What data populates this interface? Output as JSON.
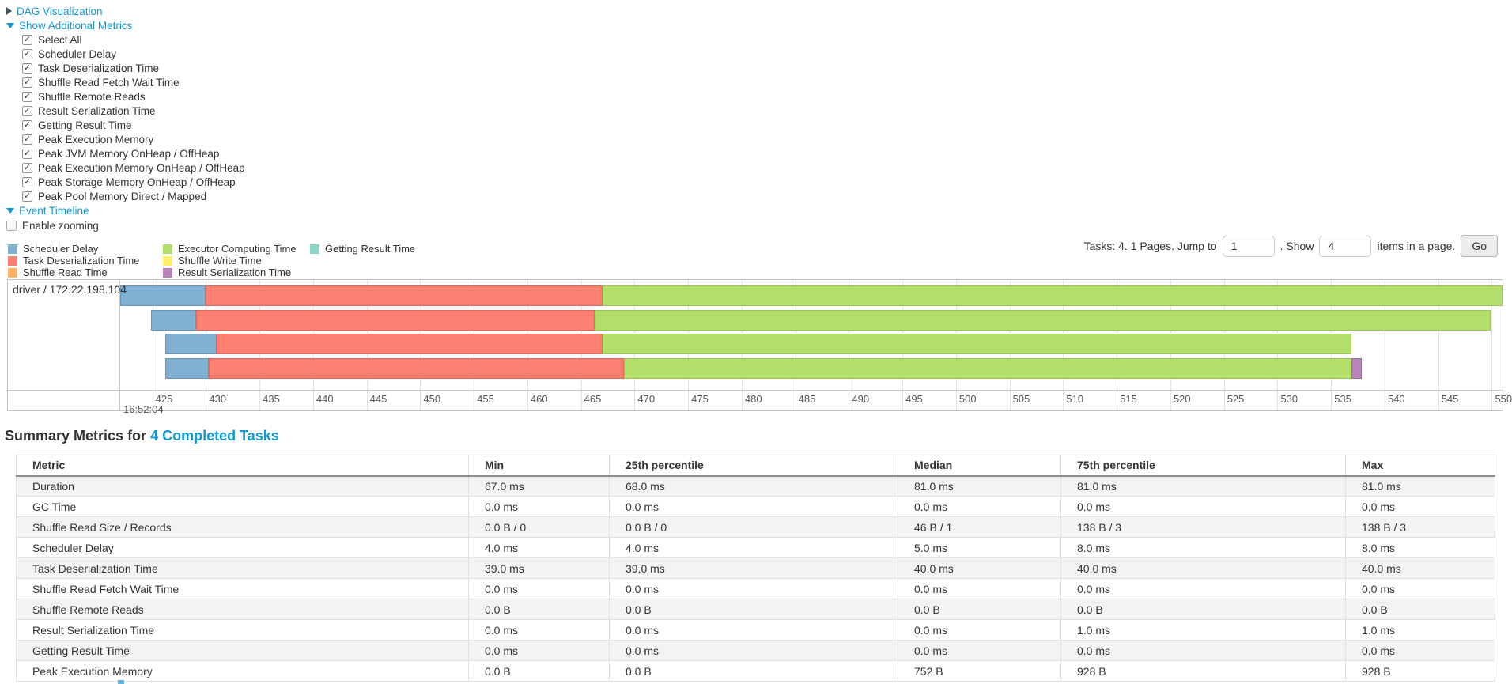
{
  "top_panel": {
    "dag_label": "DAG Visualization",
    "metrics_label": "Show Additional Metrics",
    "metric_items": [
      "Select All",
      "Scheduler Delay",
      "Task Deserialization Time",
      "Shuffle Read Fetch Wait Time",
      "Shuffle Remote Reads",
      "Result Serialization Time",
      "Getting Result Time",
      "Peak Execution Memory",
      "Peak JVM Memory OnHeap / OffHeap",
      "Peak Execution Memory OnHeap / OffHeap",
      "Peak Storage Memory OnHeap / OffHeap",
      "Peak Pool Memory Direct / Mapped"
    ],
    "event_timeline_label": "Event Timeline",
    "enable_zooming_label": "Enable zooming",
    "enable_zooming_checked": false
  },
  "pagination": {
    "tasks_label": "Tasks: 4. 1 Pages. Jump to",
    "jump_value": "1",
    "mid_label": ". Show",
    "show_value": "4",
    "suffix_label": "items in a page.",
    "go_label": "Go"
  },
  "chart_data": {
    "type": "timeline",
    "title": "Event Timeline",
    "row_label": "driver / 172.22.198.104",
    "x_axis": {
      "min": 422,
      "max": 551,
      "tick_start": 425,
      "tick_step": 5,
      "tick_end": 550,
      "major_label": "16:52:04",
      "unit": "milliseconds within 16:52:04"
    },
    "colors": {
      "scheduler-delay": {
        "fill": "#80B1D3",
        "border": "#6795b8"
      },
      "task-deserialization": {
        "fill": "#FB8072",
        "border": "#e2685b"
      },
      "shuffle-read": {
        "fill": "#FDB462",
        "border": "#e49a4b"
      },
      "executor-computing": {
        "fill": "#B3DE69",
        "border": "#9ac653"
      },
      "shuffle-write": {
        "fill": "#FFED6F",
        "border": "#e5d357"
      },
      "result-serialization": {
        "fill": "#BC80BD",
        "border": "#a368a4"
      },
      "getting-result": {
        "fill": "#8DD3C7",
        "border": "#74baae"
      }
    },
    "legend": [
      [
        {
          "key": "scheduler-delay",
          "label": "Scheduler Delay"
        },
        {
          "key": "task-deserialization",
          "label": "Task Deserialization Time"
        },
        {
          "key": "shuffle-read",
          "label": "Shuffle Read Time"
        }
      ],
      [
        {
          "key": "executor-computing",
          "label": "Executor Computing Time"
        },
        {
          "key": "shuffle-write",
          "label": "Shuffle Write Time"
        },
        {
          "key": "result-serialization",
          "label": "Result Serialization Time"
        }
      ],
      [
        {
          "key": "getting-result",
          "label": "Getting Result Time"
        }
      ]
    ],
    "tasks": [
      {
        "segments": [
          {
            "name": "scheduler-delay",
            "start": 422.0,
            "end": 430.0
          },
          {
            "name": "task-deserialization",
            "start": 430.0,
            "end": 467.0
          },
          {
            "name": "executor-computing",
            "start": 467.0,
            "end": 551.0
          }
        ]
      },
      {
        "segments": [
          {
            "name": "scheduler-delay",
            "start": 424.9,
            "end": 429.1
          },
          {
            "name": "task-deserialization",
            "start": 429.1,
            "end": 466.3
          },
          {
            "name": "executor-computing",
            "start": 466.3,
            "end": 549.9
          }
        ]
      },
      {
        "segments": [
          {
            "name": "scheduler-delay",
            "start": 426.2,
            "end": 431.0
          },
          {
            "name": "task-deserialization",
            "start": 431.0,
            "end": 467.0
          },
          {
            "name": "executor-computing",
            "start": 467.0,
            "end": 536.9
          }
        ]
      },
      {
        "segments": [
          {
            "name": "scheduler-delay",
            "start": 426.2,
            "end": 430.3
          },
          {
            "name": "task-deserialization",
            "start": 430.3,
            "end": 469.0
          },
          {
            "name": "executor-computing",
            "start": 469.0,
            "end": 536.9
          },
          {
            "name": "result-serialization",
            "start": 536.9,
            "end": 537.9
          }
        ]
      }
    ]
  },
  "summary": {
    "heading_prefix": "Summary Metrics for",
    "heading_link": "4 Completed Tasks",
    "columns": [
      "Metric",
      "Min",
      "25th percentile",
      "Median",
      "75th percentile",
      "Max"
    ],
    "rows": [
      {
        "metric": "Duration",
        "values": [
          "67.0 ms",
          "68.0 ms",
          "81.0 ms",
          "81.0 ms",
          "81.0 ms"
        ]
      },
      {
        "metric": "GC Time",
        "values": [
          "0.0 ms",
          "0.0 ms",
          "0.0 ms",
          "0.0 ms",
          "0.0 ms"
        ]
      },
      {
        "metric": "Shuffle Read Size / Records",
        "values": [
          "0.0 B / 0",
          "0.0 B / 0",
          "46 B / 1",
          "138 B / 3",
          "138 B / 3"
        ]
      },
      {
        "metric": "Scheduler Delay",
        "values": [
          "4.0 ms",
          "4.0 ms",
          "5.0 ms",
          "8.0 ms",
          "8.0 ms"
        ]
      },
      {
        "metric": "Task Deserialization Time",
        "values": [
          "39.0 ms",
          "39.0 ms",
          "40.0 ms",
          "40.0 ms",
          "40.0 ms"
        ]
      },
      {
        "metric": "Shuffle Read Fetch Wait Time",
        "values": [
          "0.0 ms",
          "0.0 ms",
          "0.0 ms",
          "0.0 ms",
          "0.0 ms"
        ]
      },
      {
        "metric": "Shuffle Remote Reads",
        "values": [
          "0.0 B",
          "0.0 B",
          "0.0 B",
          "0.0 B",
          "0.0 B"
        ]
      },
      {
        "metric": "Result Serialization Time",
        "values": [
          "0.0 ms",
          "0.0 ms",
          "0.0 ms",
          "1.0 ms",
          "1.0 ms"
        ]
      },
      {
        "metric": "Getting Result Time",
        "values": [
          "0.0 ms",
          "0.0 ms",
          "0.0 ms",
          "0.0 ms",
          "0.0 ms"
        ]
      },
      {
        "metric": "Peak Execution Memory",
        "values": [
          "0.0 B",
          "0.0 B",
          "752 B",
          "928 B",
          "928 B"
        ]
      }
    ]
  },
  "check_glyph": "✓"
}
